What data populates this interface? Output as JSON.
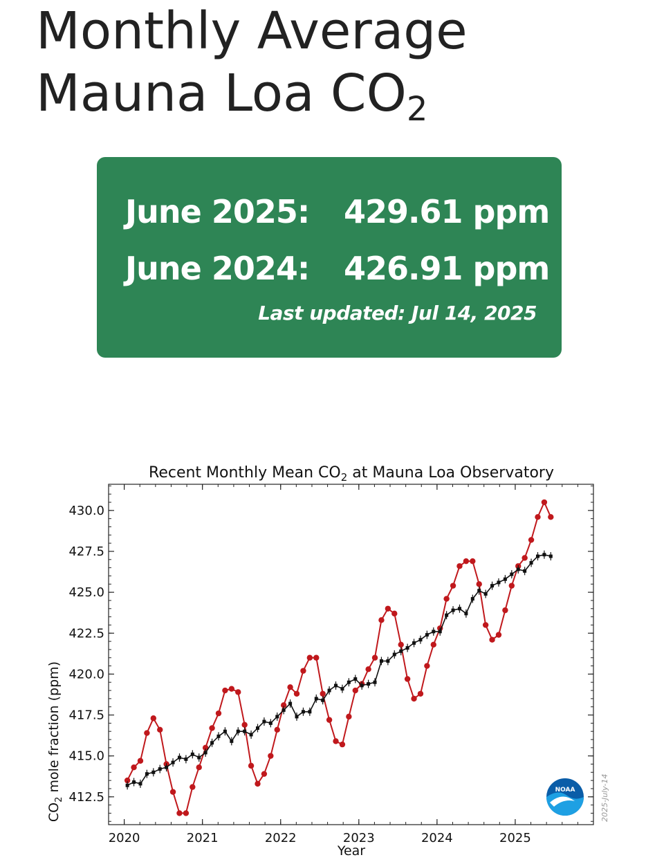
{
  "header": {
    "title_main": "Monthly Average Mauna Loa CO",
    "title_sub": "2"
  },
  "card": {
    "row1_label": "June 2025:",
    "row1_value": "429.61 ppm",
    "row2_label": "June 2024:",
    "row2_value": "426.91 ppm",
    "last_updated": "Last updated: Jul 14, 2025",
    "background_color": "#2e8555"
  },
  "chart_data": {
    "type": "line",
    "title_prefix": "Recent Monthly Mean CO",
    "title_sub": "2",
    "title_suffix": " at Mauna Loa Observatory",
    "xlabel": "Year",
    "ylabel_prefix": "CO",
    "ylabel_sub": "2",
    "ylabel_suffix": " mole fraction (ppm)",
    "xlim": [
      2019.8,
      2026.0
    ],
    "ylim": [
      410.8,
      431.6
    ],
    "xticks": [
      2020,
      2021,
      2022,
      2023,
      2024,
      2025
    ],
    "xtick_labels": [
      "2020",
      "2021",
      "2022",
      "2023",
      "2024",
      "2025"
    ],
    "yticks": [
      412.5,
      415.0,
      417.5,
      420.0,
      422.5,
      425.0,
      427.5,
      430.0
    ],
    "ytick_labels": [
      "412.5",
      "415.0",
      "417.5",
      "420.0",
      "422.5",
      "425.0",
      "427.5",
      "430.0"
    ],
    "grid": false,
    "watermark": "2025-July-14",
    "logo_text": "NOAA",
    "series": [
      {
        "color": "#c0181c",
        "marker": "circle",
        "x_start": 2020.04,
        "x_step": 0.0833,
        "values": [
          413.5,
          414.3,
          414.7,
          416.4,
          417.3,
          416.6,
          414.5,
          412.8,
          411.5,
          411.5,
          413.1,
          414.3,
          415.5,
          416.7,
          417.6,
          419.0,
          419.1,
          418.9,
          416.9,
          414.4,
          413.3,
          413.9,
          415.0,
          416.6,
          418.1,
          419.2,
          418.8,
          420.2,
          421.0,
          421.0,
          418.8,
          417.2,
          415.9,
          415.7,
          417.4,
          419.0,
          419.4,
          420.3,
          421.0,
          423.3,
          424.0,
          423.7,
          421.8,
          419.7,
          418.5,
          418.8,
          420.5,
          421.8,
          422.8,
          424.6,
          425.4,
          426.6,
          426.9,
          426.9,
          425.5,
          423.0,
          422.1,
          422.4,
          423.9,
          425.4,
          426.6,
          427.1,
          428.2,
          429.6,
          430.5,
          429.6
        ]
      },
      {
        "color": "#111111",
        "marker": "square",
        "x_start": 2020.04,
        "x_step": 0.0833,
        "values": [
          413.2,
          413.4,
          413.3,
          413.9,
          414.0,
          414.2,
          414.3,
          414.6,
          414.9,
          414.8,
          415.1,
          414.9,
          415.2,
          415.8,
          416.2,
          416.5,
          415.9,
          416.5,
          416.5,
          416.3,
          416.7,
          417.1,
          417.0,
          417.4,
          417.8,
          418.2,
          417.4,
          417.7,
          417.7,
          418.5,
          418.4,
          419.0,
          419.3,
          419.1,
          419.5,
          419.7,
          419.3,
          419.4,
          419.5,
          420.8,
          420.8,
          421.2,
          421.4,
          421.6,
          421.9,
          422.1,
          422.4,
          422.6,
          422.6,
          423.6,
          423.9,
          424.0,
          423.7,
          424.6,
          425.1,
          424.9,
          425.4,
          425.6,
          425.8,
          426.1,
          426.4,
          426.3,
          426.8,
          427.2,
          427.3,
          427.2
        ]
      }
    ]
  }
}
